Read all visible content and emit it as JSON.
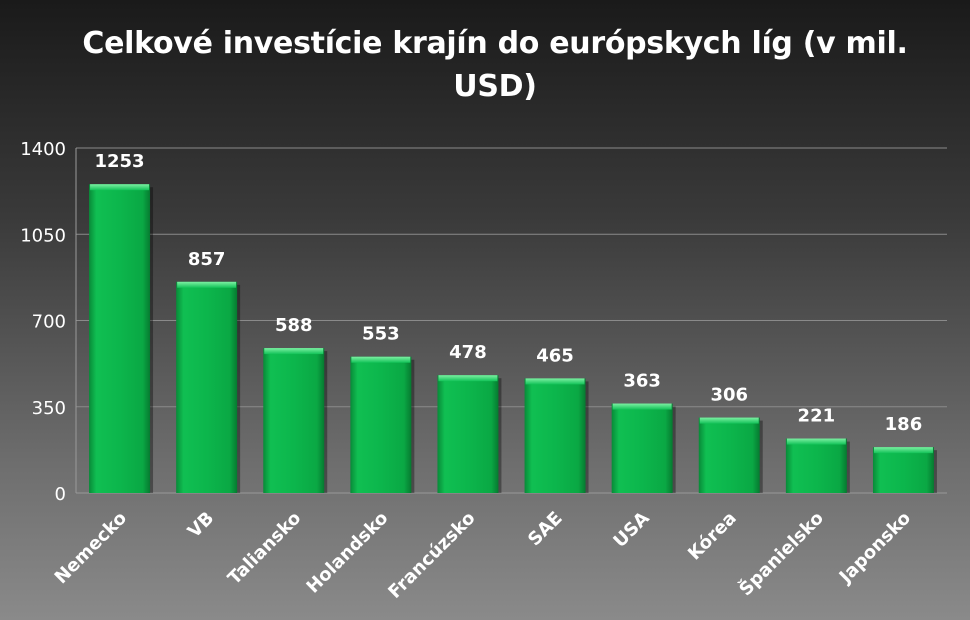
{
  "chart_data": {
    "type": "bar",
    "title": "Celkové investície krajín do európskych líg (v mil. USD)",
    "categories": [
      "Nemecko",
      "VB",
      "Taliansko",
      "Holandsko",
      "Francúzsko",
      "SAE",
      "USA",
      "Kórea",
      "Španielsko",
      "Japonsko"
    ],
    "values": [
      1253,
      857,
      588,
      553,
      478,
      465,
      363,
      306,
      221,
      186
    ],
    "ylim": [
      0,
      1400
    ],
    "yticks": [
      0,
      350,
      700,
      1050,
      1400
    ],
    "grid": true,
    "data_labels": true,
    "legend": "none",
    "bar_color": "#0db14b"
  }
}
